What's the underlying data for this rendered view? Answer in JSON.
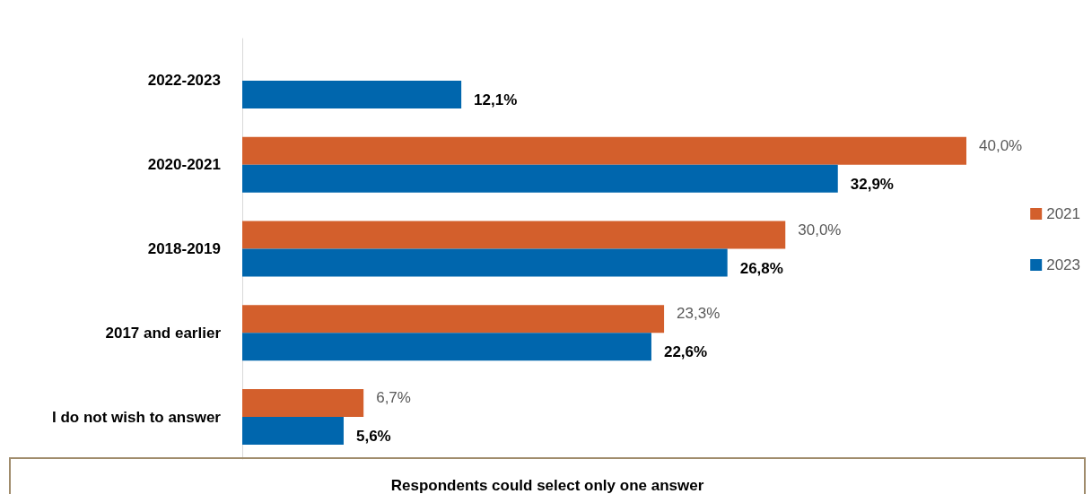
{
  "chart_data": {
    "type": "bar",
    "orientation": "horizontal",
    "categories": [
      "2022-2023",
      "2020-2021",
      "2018-2019",
      "2017 and earlier",
      "I do not wish to answer"
    ],
    "series": [
      {
        "name": "2021",
        "color": "#d35f2c",
        "values": [
          null,
          40.0,
          30.0,
          23.3,
          6.7
        ],
        "value_labels": [
          null,
          "40,0%",
          "30,0%",
          "23,3%",
          "6,7%"
        ]
      },
      {
        "name": "2023",
        "color": "#0066ad",
        "values": [
          12.1,
          32.9,
          26.8,
          22.6,
          5.6
        ],
        "value_labels": [
          "12,1%",
          "32,9%",
          "26,8%",
          "22,6%",
          "5,6%"
        ]
      }
    ],
    "legend": "right",
    "annotations": [
      "Respondents could select only one answer"
    ]
  }
}
